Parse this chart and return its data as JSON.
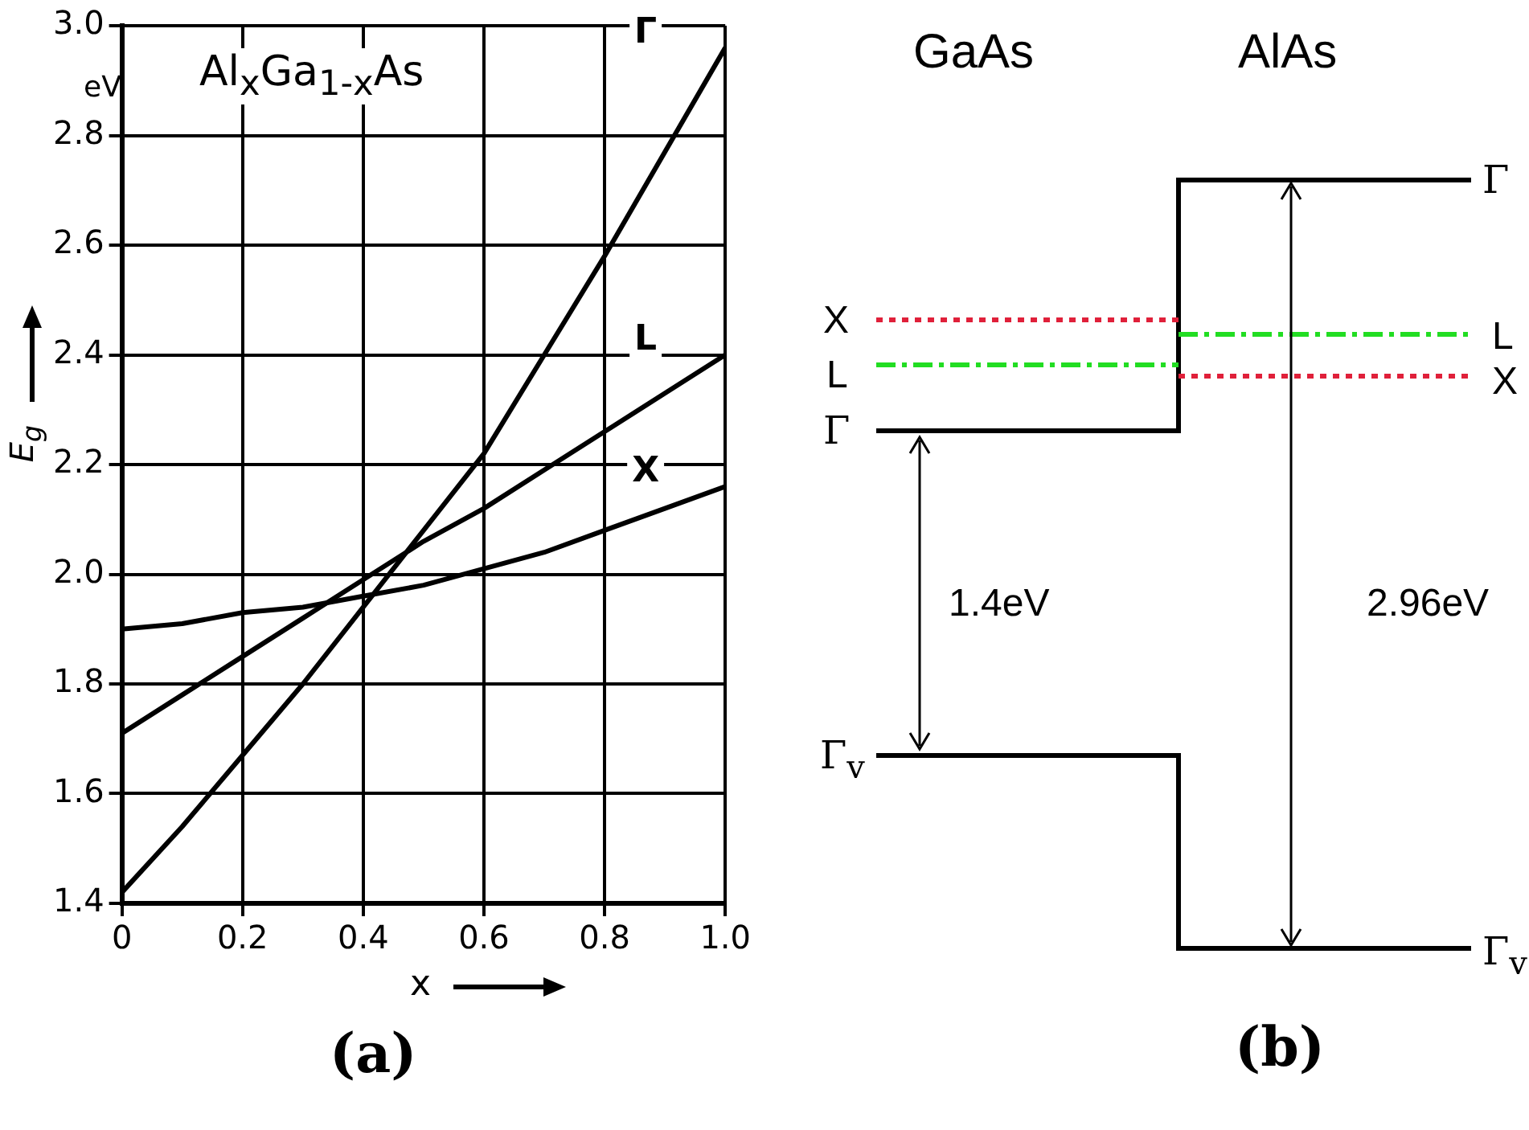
{
  "chart_data": [
    {
      "type": "line",
      "title": "Al$_{x}$Ga$_{1-x}$As",
      "xlabel": "x",
      "ylabel": "E$_{g}$",
      "annotations": [
        "eV",
        "(a)"
      ],
      "x": [
        0,
        0.1,
        0.2,
        0.3,
        0.4,
        0.5,
        0.6,
        0.7,
        0.8,
        0.9,
        1.0
      ],
      "series": [
        {
          "name": "Γ",
          "color": "#000000",
          "values": [
            1.42,
            1.54,
            1.67,
            1.8,
            1.94,
            2.08,
            2.22,
            2.4,
            2.58,
            2.77,
            2.96
          ]
        },
        {
          "name": "L",
          "color": "#000000",
          "values": [
            1.71,
            1.78,
            1.85,
            1.92,
            1.99,
            2.06,
            2.12,
            2.19,
            2.26,
            2.33,
            2.4
          ]
        },
        {
          "name": "X",
          "color": "#000000",
          "values": [
            1.9,
            1.91,
            1.93,
            1.94,
            1.96,
            1.98,
            2.01,
            2.04,
            2.08,
            2.12,
            2.16
          ]
        }
      ],
      "xlim": [
        0,
        1
      ],
      "ylim": [
        1.4,
        3.0
      ],
      "xticks": [
        0,
        0.2,
        0.4,
        0.6,
        0.8,
        {
          "value": 1,
          "label": "1.0"
        }
      ],
      "yticks": [
        1.4,
        1.6,
        1.8,
        {
          "value": 2,
          "label": "2.0"
        },
        2.2,
        2.4,
        2.6,
        2.8,
        {
          "value": 3,
          "label": "3.0"
        }
      ],
      "grid": true,
      "legend": false,
      "marker": "none",
      "line_style": "solid"
    },
    {
      "type": "other",
      "annotations": [
        "GaAs",
        "AlAs",
        "X",
        "L",
        "Γ",
        "Γ$_{v}$",
        "Γ",
        "L",
        "X",
        "Γ$_{v}$",
        "1.4eV",
        "2.96eV",
        "(b)"
      ]
    }
  ]
}
